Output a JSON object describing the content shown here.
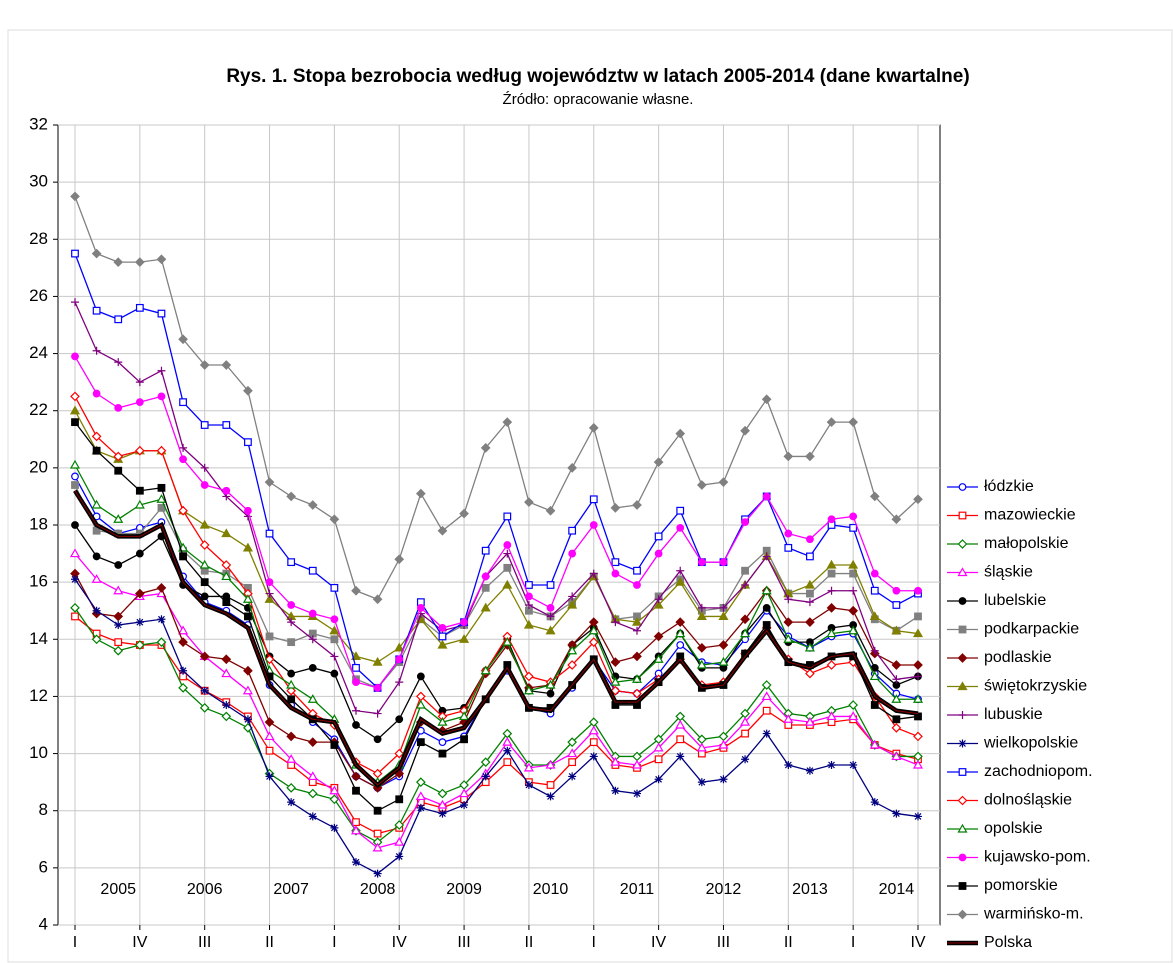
{
  "chart_data": {
    "type": "line",
    "title": "Rys. 1.  Stopa bezrobocia według województw w latach 2005-2014 (dane kwartalne)",
    "subtitle": "Źródło: opracowanie własne.",
    "categories": [
      "I",
      null,
      null,
      "IV",
      null,
      null,
      "III",
      null,
      null,
      "II",
      null,
      null,
      "I",
      null,
      null,
      "IV",
      null,
      null,
      "III",
      null,
      null,
      "II",
      null,
      null,
      "I",
      null,
      null,
      "IV",
      null,
      null,
      "III",
      null,
      null,
      "II",
      null,
      null,
      "I",
      null,
      null,
      "IV"
    ],
    "year_labels": [
      "2005",
      "2006",
      "2007",
      "2008",
      "2009",
      "2010",
      "2011",
      "2012",
      "2013",
      "2014"
    ],
    "ylim": [
      4,
      32
    ],
    "yticks": [
      4,
      6,
      8,
      10,
      12,
      14,
      16,
      18,
      20,
      22,
      24,
      26,
      28,
      30,
      32
    ],
    "grid": true,
    "legend": "right",
    "series": [
      {
        "name": "łódzkie",
        "color": "#0000ff",
        "marker": "circle",
        "filled": false,
        "values": [
          19.7,
          18.3,
          17.7,
          17.9,
          18.1,
          16.2,
          15.3,
          15.0,
          14.5,
          12.4,
          11.7,
          11.1,
          10.5,
          9.2,
          8.8,
          9.2,
          10.8,
          10.4,
          10.6,
          11.9,
          12.9,
          11.6,
          11.4,
          12.3,
          13.3,
          12.2,
          12.1,
          12.8,
          13.8,
          13.2,
          13.1,
          14.0,
          15.0,
          14.1,
          13.7,
          14.1,
          14.2,
          12.8,
          12.1,
          11.9
        ]
      },
      {
        "name": "mazowieckie",
        "color": "#ff0000",
        "marker": "square",
        "filled": false,
        "values": [
          14.8,
          14.2,
          13.9,
          13.8,
          13.8,
          12.7,
          12.2,
          11.8,
          11.3,
          10.1,
          9.6,
          9.0,
          8.8,
          7.6,
          7.2,
          7.4,
          8.3,
          8.1,
          8.4,
          9.0,
          9.7,
          9.0,
          8.9,
          9.7,
          10.4,
          9.6,
          9.5,
          9.8,
          10.5,
          10.0,
          10.2,
          10.7,
          11.5,
          11.0,
          11.0,
          11.1,
          11.2,
          10.3,
          10.0,
          9.8
        ]
      },
      {
        "name": "małopolskie",
        "color": "#008000",
        "marker": "diamond",
        "filled": false,
        "values": [
          15.1,
          14.0,
          13.6,
          13.8,
          13.9,
          12.3,
          11.6,
          11.3,
          10.9,
          9.3,
          8.8,
          8.6,
          8.4,
          7.3,
          6.9,
          7.5,
          9.0,
          8.6,
          8.9,
          9.7,
          10.7,
          9.6,
          9.6,
          10.4,
          11.1,
          9.9,
          9.9,
          10.5,
          11.3,
          10.5,
          10.6,
          11.4,
          12.4,
          11.4,
          11.3,
          11.5,
          11.7,
          10.3,
          9.9,
          9.9
        ]
      },
      {
        "name": "śląskie",
        "color": "#ff00ff",
        "marker": "triangle",
        "filled": false,
        "values": [
          17.0,
          16.1,
          15.7,
          15.5,
          15.6,
          14.3,
          13.4,
          12.8,
          12.2,
          10.6,
          9.8,
          9.2,
          8.7,
          7.3,
          6.7,
          6.9,
          8.5,
          8.2,
          8.6,
          9.3,
          10.4,
          9.5,
          9.6,
          10.0,
          10.8,
          9.7,
          9.6,
          10.2,
          11.0,
          10.2,
          10.3,
          11.1,
          12.0,
          11.2,
          11.1,
          11.3,
          11.3,
          10.3,
          9.9,
          9.6
        ]
      },
      {
        "name": "lubelskie",
        "color": "#000000",
        "marker": "circle",
        "filled": true,
        "values": [
          18.0,
          16.9,
          16.6,
          17.0,
          17.6,
          15.9,
          15.5,
          15.5,
          15.1,
          13.4,
          12.8,
          13.0,
          12.8,
          11.0,
          10.5,
          11.2,
          12.7,
          11.5,
          11.6,
          12.9,
          14.0,
          12.2,
          12.1,
          13.8,
          14.4,
          12.7,
          12.6,
          13.4,
          14.2,
          13.0,
          13.0,
          14.2,
          15.1,
          13.9,
          13.9,
          14.4,
          14.5,
          13.0,
          12.4,
          12.7
        ]
      },
      {
        "name": "podkarpackie",
        "color": "#808080",
        "marker": "square",
        "filled": true,
        "values": [
          19.4,
          17.8,
          17.7,
          17.7,
          18.6,
          17.1,
          16.4,
          16.3,
          15.8,
          14.1,
          13.9,
          14.2,
          14.0,
          12.6,
          12.3,
          13.2,
          14.7,
          14.1,
          14.5,
          15.8,
          16.5,
          15.0,
          14.8,
          15.3,
          16.2,
          14.7,
          14.8,
          15.5,
          16.1,
          15.0,
          15.1,
          16.4,
          17.1,
          15.6,
          15.6,
          16.3,
          16.3,
          14.7,
          14.3,
          14.8
        ]
      },
      {
        "name": "podlaskie",
        "color": "#800000",
        "marker": "diamond",
        "filled": true,
        "values": [
          16.3,
          14.9,
          14.8,
          15.6,
          15.8,
          13.9,
          13.4,
          13.3,
          12.9,
          11.1,
          10.6,
          10.4,
          10.4,
          9.2,
          8.8,
          9.3,
          11.1,
          10.8,
          11.1,
          12.8,
          13.8,
          12.3,
          12.4,
          13.8,
          14.6,
          13.2,
          13.4,
          14.1,
          14.6,
          13.7,
          13.8,
          14.7,
          15.7,
          14.6,
          14.6,
          15.1,
          15.0,
          13.5,
          13.1,
          13.1
        ]
      },
      {
        "name": "świętokrzyskie",
        "color": "#808000",
        "marker": "triangle",
        "filled": true,
        "values": [
          22.0,
          20.6,
          20.3,
          20.6,
          20.6,
          18.5,
          18.0,
          17.7,
          17.2,
          15.4,
          14.8,
          14.8,
          14.3,
          13.4,
          13.2,
          13.7,
          14.7,
          13.8,
          14.0,
          15.1,
          15.9,
          14.5,
          14.3,
          15.2,
          16.2,
          14.7,
          14.6,
          15.2,
          16.0,
          14.8,
          14.8,
          15.9,
          16.9,
          15.6,
          15.9,
          16.6,
          16.6,
          14.8,
          14.3,
          14.2
        ]
      },
      {
        "name": "lubuskie",
        "color": "#800080",
        "marker": "plus",
        "filled": false,
        "values": [
          25.8,
          24.1,
          23.7,
          23.0,
          23.4,
          20.7,
          20.0,
          19.0,
          18.3,
          15.6,
          14.6,
          14.0,
          13.4,
          11.5,
          11.4,
          12.5,
          14.9,
          14.3,
          14.5,
          16.2,
          17.0,
          15.2,
          14.8,
          15.5,
          16.3,
          14.6,
          14.3,
          15.4,
          16.4,
          15.1,
          15.1,
          15.9,
          16.9,
          15.4,
          15.3,
          15.7,
          15.7,
          13.6,
          12.6,
          12.7
        ]
      },
      {
        "name": "wielkopolskie",
        "color": "#000080",
        "marker": "star",
        "filled": false,
        "values": [
          16.1,
          15.0,
          14.5,
          14.6,
          14.7,
          12.9,
          12.2,
          11.7,
          11.2,
          9.2,
          8.3,
          7.8,
          7.4,
          6.2,
          5.8,
          6.4,
          8.1,
          7.9,
          8.2,
          9.2,
          10.1,
          8.9,
          8.5,
          9.2,
          9.9,
          8.7,
          8.6,
          9.1,
          9.9,
          9.0,
          9.1,
          9.8,
          10.7,
          9.6,
          9.4,
          9.6,
          9.6,
          8.3,
          7.9,
          7.8
        ]
      },
      {
        "name": "zachodniopom.",
        "color": "#0000ff",
        "marker": "square",
        "filled": false,
        "values": [
          27.5,
          25.5,
          25.2,
          25.6,
          25.4,
          22.3,
          21.5,
          21.5,
          20.9,
          17.7,
          16.7,
          16.4,
          15.8,
          13.0,
          12.3,
          13.3,
          15.3,
          14.1,
          14.6,
          17.1,
          18.3,
          15.9,
          15.9,
          17.8,
          18.9,
          16.7,
          16.4,
          17.6,
          18.5,
          16.7,
          16.7,
          18.2,
          19.0,
          17.2,
          16.9,
          18.0,
          17.9,
          15.7,
          15.2,
          15.6
        ]
      },
      {
        "name": "dolnośląskie",
        "color": "#ff0000",
        "marker": "diamond",
        "filled": false,
        "values": [
          22.5,
          21.1,
          20.4,
          20.6,
          20.6,
          18.5,
          17.3,
          16.6,
          15.6,
          13.3,
          12.2,
          11.4,
          11.0,
          9.7,
          9.3,
          10.0,
          12.0,
          11.3,
          11.5,
          12.9,
          14.1,
          12.7,
          12.5,
          13.1,
          13.9,
          12.2,
          12.1,
          12.6,
          13.3,
          12.4,
          12.5,
          13.5,
          14.4,
          13.3,
          12.8,
          13.1,
          13.2,
          12.0,
          10.9,
          10.6
        ]
      },
      {
        "name": "opolskie",
        "color": "#008000",
        "marker": "triangle",
        "filled": false,
        "values": [
          20.1,
          18.7,
          18.2,
          18.7,
          18.9,
          17.2,
          16.6,
          16.2,
          15.4,
          12.9,
          12.4,
          11.9,
          11.2,
          9.6,
          9.0,
          9.6,
          11.7,
          11.1,
          11.3,
          12.9,
          13.9,
          12.2,
          12.4,
          13.6,
          14.3,
          12.5,
          12.6,
          13.3,
          14.2,
          13.1,
          13.2,
          14.2,
          15.7,
          14.0,
          13.7,
          14.2,
          14.3,
          12.7,
          11.9,
          11.9
        ]
      },
      {
        "name": "kujawsko-pom.",
        "color": "#ff00ff",
        "marker": "circle",
        "filled": true,
        "values": [
          23.9,
          22.6,
          22.1,
          22.3,
          22.5,
          20.3,
          19.4,
          19.2,
          18.5,
          16.0,
          15.2,
          14.9,
          14.7,
          12.5,
          12.3,
          13.3,
          15.1,
          14.4,
          14.6,
          16.2,
          17.3,
          15.5,
          15.1,
          17.0,
          18.0,
          16.3,
          15.9,
          17.0,
          17.9,
          16.7,
          16.7,
          18.1,
          19.0,
          17.7,
          17.5,
          18.2,
          18.3,
          16.3,
          15.7,
          15.7
        ]
      },
      {
        "name": "pomorskie",
        "color": "#000000",
        "marker": "square",
        "filled": true,
        "values": [
          21.6,
          20.6,
          19.9,
          19.2,
          19.3,
          16.9,
          16.0,
          15.3,
          14.8,
          12.7,
          11.9,
          11.2,
          10.3,
          8.7,
          8.0,
          8.4,
          10.4,
          10.0,
          10.5,
          11.9,
          13.1,
          11.6,
          11.6,
          12.4,
          13.3,
          11.7,
          11.7,
          12.5,
          13.4,
          12.3,
          12.4,
          13.5,
          14.5,
          13.2,
          13.1,
          13.4,
          13.4,
          11.7,
          11.2,
          11.3
        ]
      },
      {
        "name": "warmińsko-m.",
        "color": "#808080",
        "marker": "diamond",
        "filled": true,
        "values": [
          29.5,
          27.5,
          27.2,
          27.2,
          27.3,
          24.5,
          23.6,
          23.6,
          22.7,
          19.5,
          19.0,
          18.7,
          18.2,
          15.7,
          15.4,
          16.8,
          19.1,
          17.8,
          18.4,
          20.7,
          21.6,
          18.8,
          18.5,
          20.0,
          21.4,
          18.6,
          18.7,
          20.2,
          21.2,
          19.4,
          19.5,
          21.3,
          22.4,
          20.4,
          20.4,
          21.6,
          21.6,
          19.0,
          18.2,
          18.9
        ]
      },
      {
        "name": "Polska",
        "color": "#000000",
        "marker": "none",
        "filled": false,
        "thick": true,
        "values": [
          19.2,
          18.0,
          17.6,
          17.6,
          18.0,
          16.0,
          15.2,
          14.9,
          14.4,
          12.4,
          11.6,
          11.2,
          11.1,
          9.6,
          8.9,
          9.5,
          11.2,
          10.7,
          10.9,
          11.9,
          13.0,
          11.6,
          11.5,
          12.4,
          13.3,
          11.8,
          11.8,
          12.5,
          13.3,
          12.3,
          12.4,
          13.4,
          14.3,
          13.2,
          13.0,
          13.4,
          13.5,
          12.0,
          11.5,
          11.4
        ]
      }
    ]
  }
}
